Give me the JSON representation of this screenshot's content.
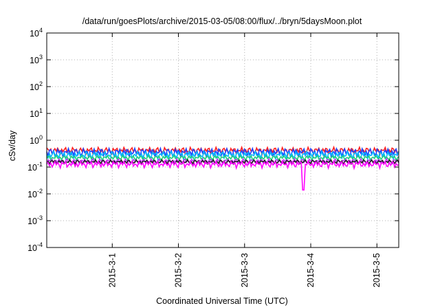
{
  "chart_data": {
    "type": "line",
    "title": "/data/run/goesPlots/archive/2015-03-05/08:00/flux/../bryn/5daysMoon.plot",
    "xlabel": "Coordinated Universal Time (UTC)",
    "ylabel": "cSv/day",
    "yscale": "log",
    "ylim": [
      0.0001,
      10000
    ],
    "ytick_labels": [
      {
        "base": "10",
        "exp": "-4"
      },
      {
        "base": "10",
        "exp": "-3"
      },
      {
        "base": "10",
        "exp": "-2"
      },
      {
        "base": "10",
        "exp": "-1"
      },
      {
        "base": "10",
        "exp": "0"
      },
      {
        "base": "10",
        "exp": "1"
      },
      {
        "base": "10",
        "exp": "2"
      },
      {
        "base": "10",
        "exp": "3"
      },
      {
        "base": "10",
        "exp": "4"
      }
    ],
    "x_range_days": [
      -0.99,
      4.33
    ],
    "xticks": [
      "2015-3-1",
      "2015-3-2",
      "2015-3-3",
      "2015-3-4",
      "2015-3-5"
    ],
    "x_start_label": "2015-3-1",
    "grid": true,
    "series": [
      {
        "color": "#ff2020",
        "base": 0.42,
        "amp": 0.13
      },
      {
        "color": "#2040ff",
        "base": 0.36,
        "amp": 0.14
      },
      {
        "color": "#00b8ff",
        "base": 0.29,
        "amp": 0.1
      },
      {
        "color": "#20d080",
        "base": 0.225,
        "amp": 0.05
      },
      {
        "color": "#c030ff",
        "base": 0.165,
        "amp": 0.04
      },
      {
        "color": "#202020",
        "base": 0.158,
        "amp": 0.03
      },
      {
        "color": "#ff00ff",
        "base": 0.13,
        "amp": 0.04,
        "dip": {
          "x": 2.88,
          "value": 0.014
        }
      }
    ]
  }
}
